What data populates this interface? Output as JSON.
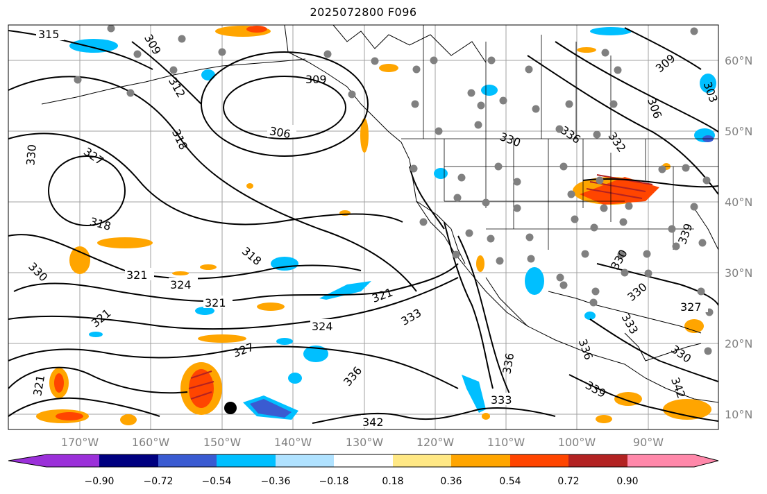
{
  "title": "2025072800 F096",
  "lon_ticks": [
    "170°W",
    "160°W",
    "150°W",
    "140°W",
    "130°W",
    "120°W",
    "110°W",
    "100°W",
    "90°W"
  ],
  "lat_ticks": [
    "60°N",
    "50°N",
    "40°N",
    "30°N",
    "20°N",
    "10°N"
  ],
  "colorbar": {
    "colors": [
      "#9b30d9",
      "#000080",
      "#3a5bd1",
      "#00bfff",
      "#b0e2ff",
      "#ffffff",
      "#ffe885",
      "#ffa500",
      "#ff4500",
      "#b22222",
      "#ff88aa"
    ],
    "tick_labels": [
      "−0.90",
      "−0.72",
      "−0.54",
      "−0.36",
      "−0.18",
      "0.18",
      "0.36",
      "0.54",
      "0.72",
      "0.90"
    ]
  },
  "contour_labels": {
    "l315": "315",
    "l309a": "309",
    "l312": "312",
    "l309b": "309",
    "l306a": "306",
    "l318a": "318",
    "l327a": "327",
    "l330a": "330",
    "l318b": "318",
    "l318c": "318",
    "l330b": "330",
    "l321a": "321",
    "l324a": "324",
    "l321b": "321",
    "l321c": "321",
    "l324b": "324",
    "l327b": "327",
    "l321d": "321",
    "l336a": "336",
    "l333a": "333",
    "l321e": "321",
    "l342": "342",
    "l336b": "336",
    "l333b": "333",
    "l339a": "339",
    "l330c": "330",
    "l336c": "336",
    "l332": "332",
    "l309c": "309",
    "l306b": "306",
    "l303": "303",
    "l330d": "330",
    "l339b": "339",
    "l327c": "327",
    "l330e": "330",
    "l333c": "333",
    "l330f": "330",
    "l342b": "342",
    "l336d": "336"
  }
}
